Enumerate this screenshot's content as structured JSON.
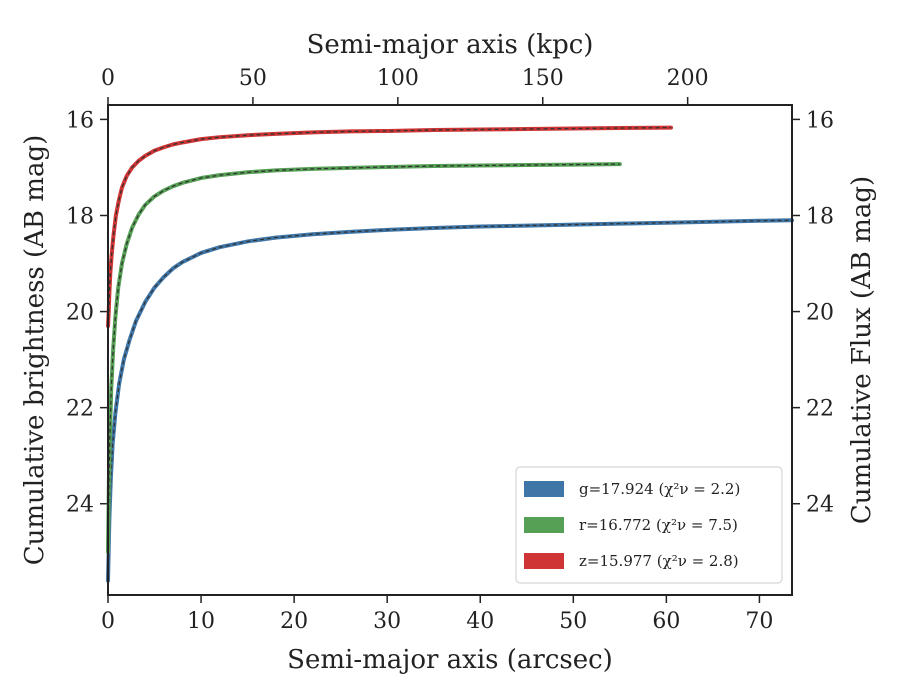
{
  "chart_data": {
    "type": "line",
    "xlabel": "Semi-major axis (arcsec)",
    "ylabel": "Cumulative brightness (AB mag)",
    "x2label": "Semi-major axis (kpc)",
    "y2label": "Cumulative Flux (AB mag)",
    "xlim": [
      0,
      73.5
    ],
    "ylim": [
      25.9,
      15.7
    ],
    "x2lim": [
      0,
      236
    ],
    "y_inverted": true,
    "xticks": [
      "0",
      "10",
      "20",
      "30",
      "40",
      "50",
      "60",
      "70"
    ],
    "yticks": [
      "16",
      "18",
      "20",
      "22",
      "24"
    ],
    "x2ticks": [
      "0",
      "50",
      "100",
      "150",
      "200"
    ],
    "legend_position": "lower-right",
    "grid": false,
    "series": [
      {
        "name": "g=17.924",
        "chi2_label": "(χ²ν = 2.2)",
        "color": "#3f76a8",
        "x": [
          0,
          0.15,
          0.3,
          0.5,
          0.8,
          1.2,
          1.7,
          2.3,
          3,
          4,
          5,
          6,
          7,
          8,
          10,
          12,
          15,
          18,
          22,
          26,
          30,
          35,
          40,
          45,
          50,
          55,
          60,
          65,
          70,
          73.5
        ],
        "y": [
          25.6,
          24.3,
          23.5,
          22.75,
          22.1,
          21.5,
          21.0,
          20.6,
          20.2,
          19.8,
          19.5,
          19.28,
          19.1,
          18.97,
          18.78,
          18.66,
          18.54,
          18.46,
          18.39,
          18.34,
          18.3,
          18.26,
          18.23,
          18.21,
          18.19,
          18.17,
          18.15,
          18.13,
          18.11,
          18.1
        ]
      },
      {
        "name": "r=16.772",
        "chi2_label": "(χ²ν = 7.5)",
        "color": "#55a055",
        "x": [
          0,
          0.1,
          0.2,
          0.35,
          0.55,
          0.8,
          1.1,
          1.5,
          2,
          2.6,
          3.3,
          4,
          5,
          6,
          7,
          8,
          10,
          12,
          15,
          18,
          22,
          26,
          30,
          35,
          40,
          45,
          50,
          55
        ],
        "y": [
          25.0,
          23.5,
          22.6,
          21.6,
          20.8,
          20.1,
          19.5,
          19.0,
          18.6,
          18.25,
          17.98,
          17.78,
          17.6,
          17.48,
          17.39,
          17.32,
          17.22,
          17.16,
          17.1,
          17.06,
          17.03,
          17.01,
          16.99,
          16.97,
          16.96,
          16.95,
          16.94,
          16.93
        ]
      },
      {
        "name": "z=15.977",
        "chi2_label": "(χ²ν = 2.8)",
        "color": "#d03535",
        "x": [
          0,
          0.08,
          0.15,
          0.25,
          0.4,
          0.6,
          0.85,
          1.15,
          1.5,
          2,
          2.6,
          3.3,
          4,
          5,
          6,
          7,
          8,
          10,
          12,
          15,
          18,
          22,
          26,
          30,
          35,
          40,
          45,
          50,
          55,
          60.5
        ],
        "y": [
          20.3,
          20.0,
          19.6,
          19.2,
          18.8,
          18.4,
          18.0,
          17.7,
          17.42,
          17.18,
          17.0,
          16.86,
          16.76,
          16.65,
          16.58,
          16.52,
          16.48,
          16.41,
          16.37,
          16.33,
          16.3,
          16.27,
          16.25,
          16.24,
          16.22,
          16.21,
          16.2,
          16.19,
          16.18,
          16.17
        ]
      }
    ]
  }
}
